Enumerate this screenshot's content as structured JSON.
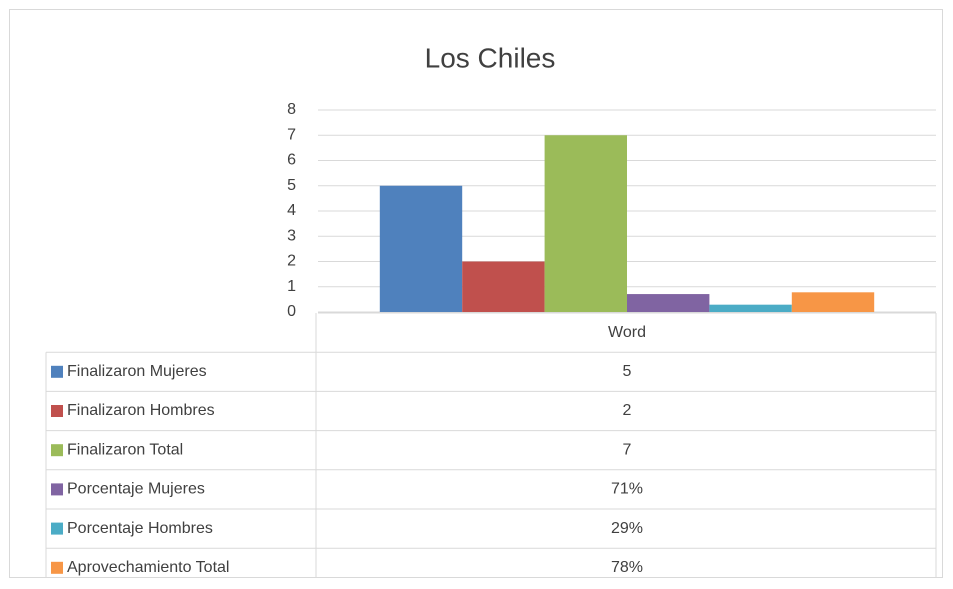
{
  "chart_data": {
    "type": "bar",
    "title": "Los Chiles",
    "categories": [
      "Word"
    ],
    "series": [
      {
        "name": "Finalizaron Mujeres",
        "color": "#4f81bd",
        "values": [
          5
        ]
      },
      {
        "name": "Finalizaron Hombres",
        "color": "#c0504d",
        "values": [
          2
        ]
      },
      {
        "name": "Finalizaron Total",
        "color": "#9bbb59",
        "values": [
          7
        ]
      },
      {
        "name": "Porcentaje Mujeres",
        "color": "#8064a2",
        "values": [
          0.71
        ],
        "value_labels": [
          "71%"
        ]
      },
      {
        "name": "Porcentaje Hombres",
        "color": "#4bacc6",
        "values": [
          0.29
        ],
        "value_labels": [
          "29%"
        ]
      },
      {
        "name": "Aprovechamiento Total",
        "color": "#f79646",
        "values": [
          0.78
        ],
        "value_labels": [
          "78%"
        ]
      }
    ],
    "ylim": [
      0,
      8
    ],
    "yticks": [
      0,
      1,
      2,
      3,
      4,
      5,
      6,
      7,
      8
    ],
    "grid": true,
    "data_table": true
  }
}
